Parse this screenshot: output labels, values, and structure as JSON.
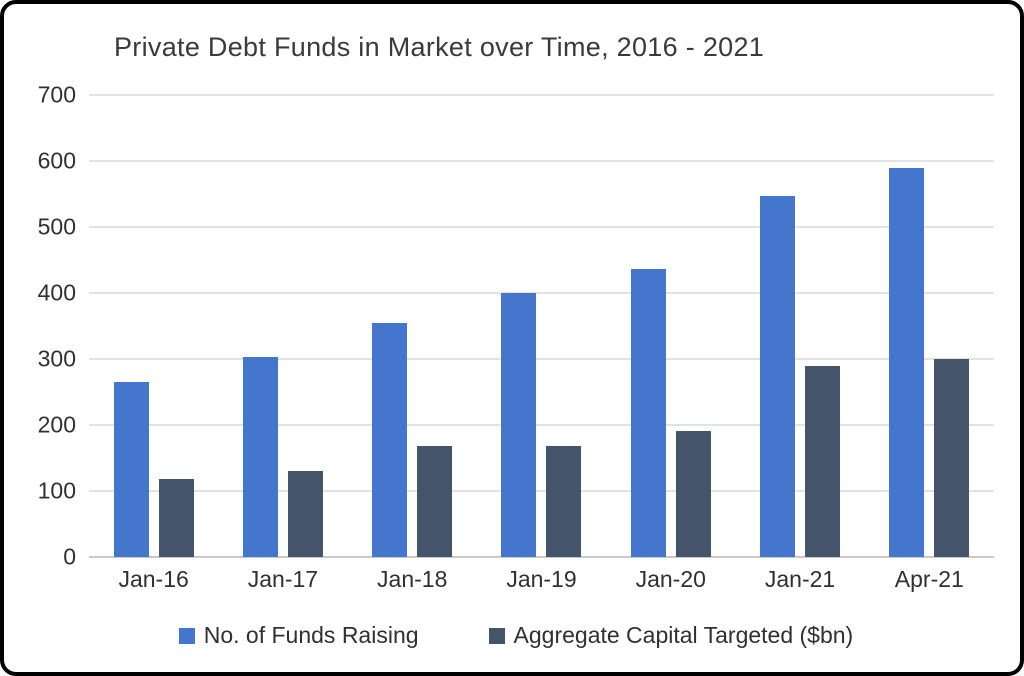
{
  "page": {
    "background": "#ffffff",
    "frame_border_color": "#000000",
    "text_color": "#303030",
    "gridline_color": "#e2e2e2",
    "zero_line_color": "#c9c9c9"
  },
  "chart_data": {
    "type": "bar",
    "title": "Private Debt Funds in Market over Time, 2016 - 2021",
    "xlabel": "",
    "ylabel": "",
    "categories": [
      "Jan-16",
      "Jan-17",
      "Jan-18",
      "Jan-19",
      "Jan-20",
      "Jan-21",
      "Apr-21"
    ],
    "series": [
      {
        "name": "No. of Funds Raising",
        "color": "#4476CE",
        "values": [
          265,
          303,
          355,
          400,
          436,
          547,
          590
        ]
      },
      {
        "name": "Aggregate Capital Targeted ($bn)",
        "color": "#44546A",
        "values": [
          118,
          130,
          168,
          168,
          191,
          290,
          300
        ]
      }
    ],
    "ylim": [
      0,
      700
    ],
    "yticks": [
      0,
      100,
      200,
      300,
      400,
      500,
      600,
      700
    ],
    "grid": true,
    "legend_position": "bottom"
  }
}
